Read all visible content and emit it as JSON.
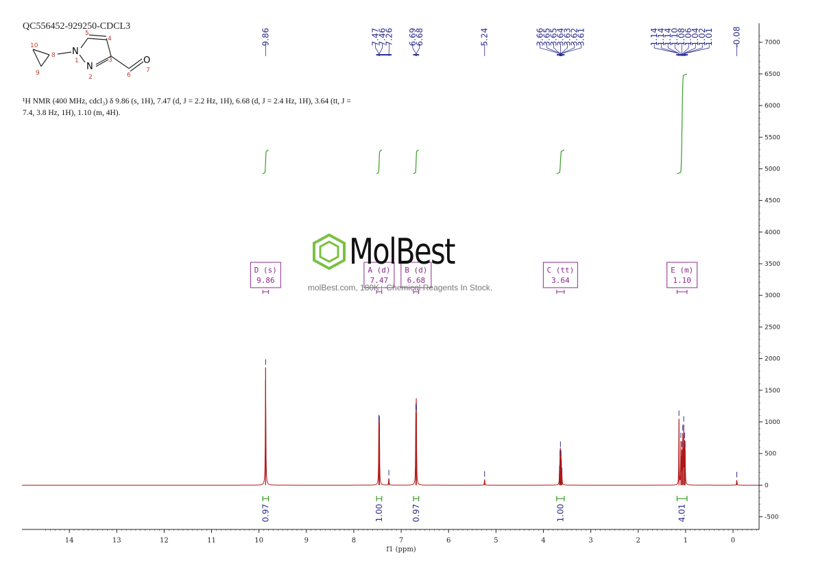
{
  "header": {
    "sample_id": "QC556452-929250-CDCL3",
    "nmr_summary_line1": "¹H NMR (400 MHz, cdcl₃) δ 9.86 (s, 1H), 7.47 (d, J = 2.2 Hz, 1H), 6.68 (d, J = 2.4 Hz, 1H), 3.64 (tt, J =",
    "nmr_summary_line2": "7.4, 3.8 Hz, 1H), 1.10 (m, 4H)."
  },
  "watermark": {
    "brand": "MolBest",
    "url_text": "molBest.com, 180K+ Chemical Reagents In Stock."
  },
  "molecule": {
    "atoms": [
      "N",
      "N",
      "O"
    ],
    "atom_numbers": [
      "1",
      "2",
      "3",
      "4",
      "5",
      "6",
      "7",
      "8",
      "9",
      "10"
    ]
  },
  "colors": {
    "spectrum": "#b01818",
    "peak_label": "#2a2e8a",
    "integral": "#3a9a2a",
    "multiplet": "#8b2a8b",
    "brand_green": "#7ac143"
  },
  "chart_data": {
    "type": "line",
    "title": "QC556452-929250-CDCL3",
    "xlabel": "f1 (ppm)",
    "ylabel": "",
    "x_reversed": true,
    "xlim": [
      15.0,
      -0.55
    ],
    "ylim": [
      -700,
      7300
    ],
    "xticks": [
      14,
      13,
      12,
      11,
      10,
      9,
      8,
      7,
      6,
      5,
      4,
      3,
      2,
      1,
      0
    ],
    "yticks": [
      -500,
      0,
      500,
      1000,
      1500,
      2000,
      2500,
      3000,
      3500,
      4000,
      4500,
      5000,
      5500,
      6000,
      6500,
      7000
    ],
    "peaks": [
      {
        "ppm": 9.86,
        "height": 1860,
        "width": 0.006
      },
      {
        "ppm": 7.47,
        "height": 980,
        "width": 0.005
      },
      {
        "ppm": 7.46,
        "height": 960,
        "width": 0.005
      },
      {
        "ppm": 7.26,
        "height": 110,
        "width": 0.006
      },
      {
        "ppm": 6.69,
        "height": 1150,
        "width": 0.005
      },
      {
        "ppm": 6.68,
        "height": 1140,
        "width": 0.005
      },
      {
        "ppm": 5.24,
        "height": 90,
        "width": 0.006
      },
      {
        "ppm": 3.66,
        "height": 180,
        "width": 0.004
      },
      {
        "ppm": 3.65,
        "height": 420,
        "width": 0.004
      },
      {
        "ppm": 3.64,
        "height": 560,
        "width": 0.004
      },
      {
        "ppm": 3.63,
        "height": 430,
        "width": 0.004
      },
      {
        "ppm": 3.62,
        "height": 260,
        "width": 0.004
      },
      {
        "ppm": 3.61,
        "height": 150,
        "width": 0.004
      },
      {
        "ppm": 1.14,
        "height": 1050,
        "width": 0.004
      },
      {
        "ppm": 1.1,
        "height": 700,
        "width": 0.004
      },
      {
        "ppm": 1.08,
        "height": 560,
        "width": 0.004
      },
      {
        "ppm": 1.06,
        "height": 820,
        "width": 0.004
      },
      {
        "ppm": 1.04,
        "height": 960,
        "width": 0.004
      },
      {
        "ppm": 1.02,
        "height": 700,
        "width": 0.004
      },
      {
        "ppm": 1.01,
        "height": 560,
        "width": 0.004
      },
      {
        "ppm": -0.08,
        "height": 80,
        "width": 0.006
      }
    ],
    "peak_label_groups": [
      {
        "labels": [
          "9.86"
        ],
        "ppms": [
          9.86
        ]
      },
      {
        "labels": [
          "7.47",
          "7.46",
          "7.26"
        ],
        "ppms": [
          7.47,
          7.46,
          7.26
        ]
      },
      {
        "labels": [
          "6.69",
          "6.68"
        ],
        "ppms": [
          6.69,
          6.68
        ]
      },
      {
        "labels": [
          "5.24"
        ],
        "ppms": [
          5.24
        ]
      },
      {
        "labels": [
          "3.66",
          "3.65",
          "3.65",
          "3.64",
          "3.63",
          "3.62",
          "3.61"
        ],
        "ppms": [
          3.66,
          3.65,
          3.65,
          3.64,
          3.63,
          3.62,
          3.61
        ]
      },
      {
        "labels": [
          "1.14",
          "1.14",
          "1.14",
          "1.10",
          "1.08",
          "1.06",
          "1.04",
          "1.02",
          "1.01"
        ],
        "ppms": [
          1.14,
          1.14,
          1.14,
          1.1,
          1.08,
          1.06,
          1.04,
          1.02,
          1.01
        ]
      },
      {
        "labels": [
          "-0.08"
        ],
        "ppms": [
          -0.08
        ]
      }
    ],
    "integrals": [
      {
        "ppm_from": 9.92,
        "ppm_to": 9.8,
        "value": "0.97",
        "curve_y_start": 4920,
        "curve_y_end": 5300
      },
      {
        "ppm_from": 7.52,
        "ppm_to": 7.41,
        "value": "1.00",
        "curve_y_start": 4920,
        "curve_y_end": 5300
      },
      {
        "ppm_from": 6.74,
        "ppm_to": 6.63,
        "value": "0.97",
        "curve_y_start": 4920,
        "curve_y_end": 5300
      },
      {
        "ppm_from": 3.72,
        "ppm_to": 3.56,
        "value": "1.00",
        "curve_y_start": 4920,
        "curve_y_end": 5300
      },
      {
        "ppm_from": 1.18,
        "ppm_to": 0.97,
        "value": "4.01",
        "curve_y_start": 4920,
        "curve_y_end": 6500
      }
    ],
    "multiplets": [
      {
        "id": "D (s)",
        "shift": "9.86",
        "ppm_from": 9.92,
        "ppm_to": 9.8
      },
      {
        "id": "A (d)",
        "shift": "7.47",
        "ppm_from": 7.52,
        "ppm_to": 7.41
      },
      {
        "id": "B (d)",
        "shift": "6.68",
        "ppm_from": 6.74,
        "ppm_to": 6.63
      },
      {
        "id": "C (tt)",
        "shift": "3.64",
        "ppm_from": 3.72,
        "ppm_to": 3.56
      },
      {
        "id": "E (m)",
        "shift": "1.10",
        "ppm_from": 1.18,
        "ppm_to": 0.97
      }
    ]
  }
}
